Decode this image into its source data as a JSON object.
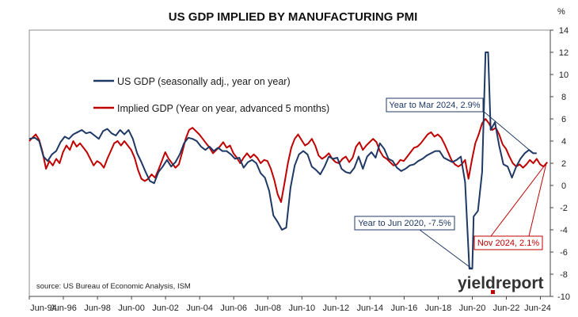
{
  "chart_data": {
    "type": "line",
    "title": "US GDP IMPLIED BY MANUFACTURING PMI",
    "y_unit_label": "%",
    "ylim": [
      -10,
      14
    ],
    "y_ticks": [
      "14",
      "12",
      "10",
      "8",
      "6",
      "4",
      "2",
      "0",
      "-2",
      "-4",
      "-6",
      "-8",
      "-10"
    ],
    "xlim": [
      1994.42,
      2025.0
    ],
    "x_tick_labels": [
      {
        "label": "Jun-94",
        "t": 1994.42
      },
      {
        "label": "Jun-96",
        "t": 1996.42
      },
      {
        "label": "Jun-98",
        "t": 1998.42
      },
      {
        "label": "Jun-00",
        "t": 2000.42
      },
      {
        "label": "Jun-02",
        "t": 2002.42
      },
      {
        "label": "Jun-04",
        "t": 2004.42
      },
      {
        "label": "Jun-06",
        "t": 2006.42
      },
      {
        "label": "Jun-08",
        "t": 2008.42
      },
      {
        "label": "Jun-10",
        "t": 2010.42
      },
      {
        "label": "Jun-12",
        "t": 2012.42
      },
      {
        "label": "Jun-14",
        "t": 2014.42
      },
      {
        "label": "Jun-16",
        "t": 2016.42
      },
      {
        "label": "Jun-18",
        "t": 2018.42
      },
      {
        "label": "Jun-20",
        "t": 2020.42
      },
      {
        "label": "Jun-22",
        "t": 2022.42
      },
      {
        "label": "Jun-24",
        "t": 2024.42
      }
    ],
    "grid": false,
    "legend_position": "top-left",
    "series": [
      {
        "name": "US GDP (seasonally adj., year on year)",
        "color": "#1f3864",
        "points": [
          [
            1994.42,
            4.2
          ],
          [
            1994.75,
            4.3
          ],
          [
            1995.0,
            4.0
          ],
          [
            1995.25,
            2.6
          ],
          [
            1995.5,
            2.2
          ],
          [
            1995.75,
            2.8
          ],
          [
            1996.0,
            3.1
          ],
          [
            1996.25,
            3.9
          ],
          [
            1996.5,
            4.4
          ],
          [
            1996.75,
            4.2
          ],
          [
            1997.0,
            4.6
          ],
          [
            1997.25,
            4.8
          ],
          [
            1997.5,
            5.0
          ],
          [
            1997.75,
            4.7
          ],
          [
            1998.0,
            4.8
          ],
          [
            1998.25,
            4.5
          ],
          [
            1998.5,
            4.2
          ],
          [
            1998.75,
            4.9
          ],
          [
            1999.0,
            5.1
          ],
          [
            1999.25,
            4.7
          ],
          [
            1999.5,
            4.5
          ],
          [
            1999.75,
            5.0
          ],
          [
            2000.0,
            4.6
          ],
          [
            2000.25,
            5.0
          ],
          [
            2000.5,
            4.2
          ],
          [
            2000.75,
            2.9
          ],
          [
            2001.0,
            2.1
          ],
          [
            2001.25,
            1.2
          ],
          [
            2001.5,
            0.4
          ],
          [
            2001.75,
            0.2
          ],
          [
            2002.0,
            1.2
          ],
          [
            2002.25,
            1.7
          ],
          [
            2002.5,
            2.3
          ],
          [
            2002.75,
            1.7
          ],
          [
            2003.0,
            2.1
          ],
          [
            2003.25,
            2.8
          ],
          [
            2003.5,
            3.8
          ],
          [
            2003.75,
            4.3
          ],
          [
            2004.0,
            4.2
          ],
          [
            2004.25,
            4.0
          ],
          [
            2004.5,
            3.5
          ],
          [
            2004.75,
            3.2
          ],
          [
            2005.0,
            3.5
          ],
          [
            2005.25,
            3.1
          ],
          [
            2005.5,
            3.4
          ],
          [
            2005.75,
            3.1
          ],
          [
            2006.0,
            3.1
          ],
          [
            2006.25,
            2.8
          ],
          [
            2006.5,
            2.4
          ],
          [
            2006.75,
            2.5
          ],
          [
            2007.0,
            1.6
          ],
          [
            2007.25,
            2.1
          ],
          [
            2007.5,
            2.3
          ],
          [
            2007.75,
            2.0
          ],
          [
            2008.0,
            1.1
          ],
          [
            2008.25,
            0.7
          ],
          [
            2008.5,
            -0.5
          ],
          [
            2008.75,
            -2.7
          ],
          [
            2009.0,
            -3.3
          ],
          [
            2009.25,
            -4.0
          ],
          [
            2009.5,
            -3.8
          ],
          [
            2009.75,
            -0.2
          ],
          [
            2010.0,
            1.8
          ],
          [
            2010.25,
            2.8
          ],
          [
            2010.5,
            3.1
          ],
          [
            2010.75,
            2.8
          ],
          [
            2011.0,
            1.7
          ],
          [
            2011.25,
            1.4
          ],
          [
            2011.5,
            1.0
          ],
          [
            2011.75,
            1.7
          ],
          [
            2012.0,
            2.6
          ],
          [
            2012.25,
            2.4
          ],
          [
            2012.5,
            2.5
          ],
          [
            2012.75,
            1.5
          ],
          [
            2013.0,
            1.2
          ],
          [
            2013.25,
            1.1
          ],
          [
            2013.5,
            1.6
          ],
          [
            2013.75,
            2.6
          ],
          [
            2014.0,
            1.5
          ],
          [
            2014.25,
            2.6
          ],
          [
            2014.5,
            3.0
          ],
          [
            2014.75,
            2.5
          ],
          [
            2015.0,
            3.8
          ],
          [
            2015.25,
            3.3
          ],
          [
            2015.5,
            2.4
          ],
          [
            2015.75,
            2.2
          ],
          [
            2016.0,
            1.6
          ],
          [
            2016.25,
            1.3
          ],
          [
            2016.5,
            1.5
          ],
          [
            2016.75,
            1.8
          ],
          [
            2017.0,
            1.9
          ],
          [
            2017.25,
            2.2
          ],
          [
            2017.5,
            2.4
          ],
          [
            2017.75,
            2.7
          ],
          [
            2018.0,
            2.9
          ],
          [
            2018.25,
            3.1
          ],
          [
            2018.5,
            3.1
          ],
          [
            2018.75,
            2.5
          ],
          [
            2019.0,
            2.3
          ],
          [
            2019.25,
            2.1
          ],
          [
            2019.5,
            2.3
          ],
          [
            2019.75,
            2.6
          ],
          [
            2020.0,
            0.3
          ],
          [
            2020.25,
            -7.5
          ],
          [
            2020.42,
            -7.5
          ],
          [
            2020.5,
            -2.8
          ],
          [
            2020.75,
            -2.3
          ],
          [
            2021.0,
            1.2
          ],
          [
            2021.2,
            12.0
          ],
          [
            2021.35,
            12.0
          ],
          [
            2021.5,
            5.0
          ],
          [
            2021.75,
            5.7
          ],
          [
            2022.0,
            3.6
          ],
          [
            2022.25,
            1.9
          ],
          [
            2022.5,
            1.7
          ],
          [
            2022.75,
            0.7
          ],
          [
            2023.0,
            1.7
          ],
          [
            2023.25,
            2.4
          ],
          [
            2023.5,
            2.9
          ],
          [
            2023.75,
            3.2
          ],
          [
            2024.0,
            2.9
          ],
          [
            2024.2,
            2.9
          ]
        ]
      },
      {
        "name": "Implied GDP (Year on year, advanced 5 months)",
        "color": "#c00000",
        "points": [
          [
            1994.42,
            4.0
          ],
          [
            1994.6,
            4.3
          ],
          [
            1994.8,
            4.6
          ],
          [
            1995.0,
            4.1
          ],
          [
            1995.2,
            3.0
          ],
          [
            1995.4,
            1.5
          ],
          [
            1995.6,
            2.2
          ],
          [
            1995.8,
            1.8
          ],
          [
            1996.0,
            2.4
          ],
          [
            1996.2,
            2.0
          ],
          [
            1996.4,
            3.0
          ],
          [
            1996.6,
            3.6
          ],
          [
            1996.8,
            3.2
          ],
          [
            1997.0,
            4.0
          ],
          [
            1997.2,
            3.5
          ],
          [
            1997.4,
            3.8
          ],
          [
            1997.6,
            3.4
          ],
          [
            1997.8,
            3.0
          ],
          [
            1998.0,
            2.4
          ],
          [
            1998.2,
            1.8
          ],
          [
            1998.4,
            2.2
          ],
          [
            1998.6,
            2.0
          ],
          [
            1998.8,
            1.6
          ],
          [
            1999.0,
            2.4
          ],
          [
            1999.2,
            3.1
          ],
          [
            1999.4,
            3.8
          ],
          [
            1999.6,
            4.0
          ],
          [
            1999.8,
            3.6
          ],
          [
            2000.0,
            4.0
          ],
          [
            2000.2,
            3.6
          ],
          [
            2000.4,
            3.2
          ],
          [
            2000.6,
            2.5
          ],
          [
            2000.8,
            1.4
          ],
          [
            2001.0,
            0.6
          ],
          [
            2001.2,
            0.4
          ],
          [
            2001.4,
            0.6
          ],
          [
            2001.6,
            1.0
          ],
          [
            2001.8,
            0.7
          ],
          [
            2002.0,
            1.4
          ],
          [
            2002.2,
            2.2
          ],
          [
            2002.4,
            3.0
          ],
          [
            2002.6,
            2.4
          ],
          [
            2002.8,
            2.0
          ],
          [
            2003.0,
            1.6
          ],
          [
            2003.2,
            1.9
          ],
          [
            2003.4,
            3.0
          ],
          [
            2003.6,
            4.2
          ],
          [
            2003.8,
            5.0
          ],
          [
            2004.0,
            5.2
          ],
          [
            2004.2,
            4.9
          ],
          [
            2004.4,
            4.6
          ],
          [
            2004.6,
            4.2
          ],
          [
            2004.8,
            3.8
          ],
          [
            2005.0,
            3.4
          ],
          [
            2005.2,
            2.9
          ],
          [
            2005.4,
            3.2
          ],
          [
            2005.6,
            3.5
          ],
          [
            2005.8,
            3.9
          ],
          [
            2006.0,
            3.4
          ],
          [
            2006.2,
            3.6
          ],
          [
            2006.4,
            2.9
          ],
          [
            2006.6,
            2.5
          ],
          [
            2006.8,
            2.0
          ],
          [
            2007.0,
            2.5
          ],
          [
            2007.2,
            2.9
          ],
          [
            2007.4,
            2.5
          ],
          [
            2007.6,
            2.8
          ],
          [
            2007.8,
            2.5
          ],
          [
            2008.0,
            2.0
          ],
          [
            2008.2,
            2.3
          ],
          [
            2008.4,
            2.2
          ],
          [
            2008.6,
            1.5
          ],
          [
            2008.8,
            0.5
          ],
          [
            2009.0,
            -0.8
          ],
          [
            2009.2,
            -1.5
          ],
          [
            2009.4,
            0.2
          ],
          [
            2009.6,
            2.0
          ],
          [
            2009.8,
            3.4
          ],
          [
            2010.0,
            4.2
          ],
          [
            2010.2,
            4.6
          ],
          [
            2010.4,
            4.1
          ],
          [
            2010.6,
            3.6
          ],
          [
            2010.8,
            3.8
          ],
          [
            2011.0,
            4.2
          ],
          [
            2011.2,
            3.6
          ],
          [
            2011.4,
            2.7
          ],
          [
            2011.6,
            2.4
          ],
          [
            2011.8,
            2.6
          ],
          [
            2012.0,
            2.9
          ],
          [
            2012.2,
            2.4
          ],
          [
            2012.4,
            2.1
          ],
          [
            2012.6,
            2.0
          ],
          [
            2012.8,
            2.4
          ],
          [
            2013.0,
            2.6
          ],
          [
            2013.2,
            2.1
          ],
          [
            2013.4,
            2.5
          ],
          [
            2013.6,
            3.5
          ],
          [
            2013.8,
            3.9
          ],
          [
            2014.0,
            3.2
          ],
          [
            2014.2,
            3.6
          ],
          [
            2014.4,
            3.9
          ],
          [
            2014.6,
            4.2
          ],
          [
            2014.8,
            3.9
          ],
          [
            2015.0,
            3.1
          ],
          [
            2015.2,
            2.6
          ],
          [
            2015.4,
            2.4
          ],
          [
            2015.6,
            2.1
          ],
          [
            2015.8,
            1.8
          ],
          [
            2016.0,
            1.9
          ],
          [
            2016.2,
            2.3
          ],
          [
            2016.4,
            2.2
          ],
          [
            2016.6,
            2.6
          ],
          [
            2016.8,
            3.0
          ],
          [
            2017.0,
            3.4
          ],
          [
            2017.2,
            3.5
          ],
          [
            2017.4,
            3.8
          ],
          [
            2017.6,
            4.2
          ],
          [
            2017.8,
            4.6
          ],
          [
            2018.0,
            4.8
          ],
          [
            2018.2,
            4.4
          ],
          [
            2018.4,
            4.6
          ],
          [
            2018.6,
            4.3
          ],
          [
            2018.8,
            3.7
          ],
          [
            2019.0,
            3.0
          ],
          [
            2019.2,
            2.3
          ],
          [
            2019.4,
            1.9
          ],
          [
            2019.6,
            1.7
          ],
          [
            2019.8,
            1.9
          ],
          [
            2020.0,
            2.3
          ],
          [
            2020.2,
            0.6
          ],
          [
            2020.4,
            2.3
          ],
          [
            2020.6,
            3.8
          ],
          [
            2020.8,
            4.6
          ],
          [
            2021.0,
            5.6
          ],
          [
            2021.2,
            6.0
          ],
          [
            2021.4,
            5.6
          ],
          [
            2021.6,
            5.0
          ],
          [
            2021.8,
            5.2
          ],
          [
            2022.0,
            4.6
          ],
          [
            2022.2,
            3.7
          ],
          [
            2022.4,
            3.3
          ],
          [
            2022.6,
            2.6
          ],
          [
            2022.8,
            2.0
          ],
          [
            2023.0,
            1.7
          ],
          [
            2023.2,
            1.9
          ],
          [
            2023.4,
            1.6
          ],
          [
            2023.6,
            1.9
          ],
          [
            2023.8,
            2.3
          ],
          [
            2024.0,
            2.0
          ],
          [
            2024.2,
            2.4
          ],
          [
            2024.4,
            1.9
          ],
          [
            2024.6,
            1.7
          ],
          [
            2024.83,
            2.1
          ]
        ]
      }
    ],
    "annotations": [
      {
        "text": "Year to Mar 2024, 2.9%",
        "color": "#1f3864",
        "target": [
          2024.2,
          2.9
        ]
      },
      {
        "text": "Year to Jun 2020, -7.5%",
        "color": "#1f3864",
        "target": [
          2020.42,
          -7.5
        ]
      },
      {
        "text": "Nov 2024, 2.1%",
        "color": "#c00000",
        "target": [
          2024.83,
          2.1
        ]
      }
    ],
    "source": "source: US Bureau of Economic Analysis, ISM",
    "logo_text": "yieldreport"
  }
}
